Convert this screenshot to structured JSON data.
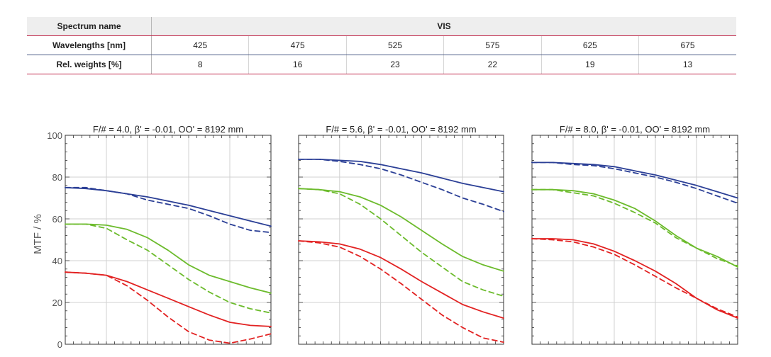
{
  "table": {
    "header_label": "Spectrum name",
    "spectrum": "VIS",
    "rows": [
      {
        "label": "Wavelengths [nm]",
        "values": [
          "425",
          "475",
          "525",
          "575",
          "625",
          "675"
        ]
      },
      {
        "label": "Rel. weights [%]",
        "values": [
          "8",
          "16",
          "23",
          "22",
          "19",
          "13"
        ]
      }
    ]
  },
  "chart_data": [
    {
      "type": "line",
      "title": "F/# = 4.0, β' = -0.01, OO' = 8192 mm",
      "ylabel": "MTF / %",
      "ylim": [
        0,
        100
      ],
      "yticks": [
        "0",
        "20",
        "40",
        "60",
        "80",
        "100"
      ],
      "grid": true,
      "series": [
        {
          "color": "#2b3f96",
          "dash": false,
          "x": [
            0,
            0.1,
            0.2,
            0.3,
            0.4,
            0.5,
            0.6,
            0.7,
            0.8,
            0.9,
            1
          ],
          "y": [
            75,
            74.5,
            73.5,
            72,
            70.5,
            68.5,
            66.5,
            64,
            61.5,
            59,
            56.5
          ]
        },
        {
          "color": "#2b3f96",
          "dash": true,
          "x": [
            0,
            0.1,
            0.2,
            0.3,
            0.4,
            0.5,
            0.6,
            0.7,
            0.8,
            0.9,
            1
          ],
          "y": [
            75,
            75,
            73.5,
            72,
            69,
            67,
            65,
            61.5,
            57.5,
            54.5,
            53.5
          ]
        },
        {
          "color": "#6cbb2c",
          "dash": false,
          "x": [
            0,
            0.1,
            0.2,
            0.3,
            0.4,
            0.5,
            0.6,
            0.7,
            0.8,
            0.9,
            1
          ],
          "y": [
            57.5,
            57.5,
            57,
            55,
            51,
            45,
            38,
            33,
            30,
            27,
            24.5
          ]
        },
        {
          "color": "#6cbb2c",
          "dash": true,
          "x": [
            0,
            0.1,
            0.2,
            0.3,
            0.4,
            0.5,
            0.6,
            0.7,
            0.8,
            0.9,
            1
          ],
          "y": [
            57.5,
            57.5,
            55.5,
            50,
            45,
            38,
            31,
            25,
            20,
            17,
            15
          ]
        },
        {
          "color": "#e22222",
          "dash": false,
          "x": [
            0,
            0.1,
            0.2,
            0.3,
            0.4,
            0.5,
            0.6,
            0.7,
            0.8,
            0.9,
            1
          ],
          "y": [
            34.5,
            34,
            33,
            30,
            26,
            22,
            18,
            14,
            10.5,
            9,
            8.5
          ]
        },
        {
          "color": "#e22222",
          "dash": true,
          "x": [
            0,
            0.1,
            0.2,
            0.3,
            0.4,
            0.5,
            0.6,
            0.7,
            0.8,
            0.9,
            1
          ],
          "y": [
            34.5,
            34,
            33,
            28,
            21,
            13,
            6,
            2,
            0.5,
            2.5,
            5
          ]
        }
      ]
    },
    {
      "type": "line",
      "title": "F/# = 5.6, β' = -0.01, OO' = 8192 mm",
      "ylim": [
        0,
        100
      ],
      "grid": true,
      "series": [
        {
          "color": "#2b3f96",
          "dash": false,
          "x": [
            0,
            0.1,
            0.2,
            0.3,
            0.4,
            0.5,
            0.6,
            0.7,
            0.8,
            0.9,
            1
          ],
          "y": [
            88.5,
            88.5,
            88,
            87.5,
            86,
            84,
            82,
            79.5,
            77,
            75,
            73
          ]
        },
        {
          "color": "#2b3f96",
          "dash": true,
          "x": [
            0,
            0.1,
            0.2,
            0.3,
            0.4,
            0.5,
            0.6,
            0.7,
            0.8,
            0.9,
            1
          ],
          "y": [
            88.5,
            88.5,
            87.5,
            86,
            84,
            81,
            77.5,
            74,
            70,
            67,
            63.5
          ]
        },
        {
          "color": "#6cbb2c",
          "dash": false,
          "x": [
            0,
            0.1,
            0.2,
            0.3,
            0.4,
            0.5,
            0.6,
            0.7,
            0.8,
            0.9,
            1
          ],
          "y": [
            74.5,
            74,
            73,
            70.5,
            66.5,
            61,
            54.5,
            48,
            42,
            38,
            35
          ]
        },
        {
          "color": "#6cbb2c",
          "dash": true,
          "x": [
            0,
            0.1,
            0.2,
            0.3,
            0.4,
            0.5,
            0.6,
            0.7,
            0.8,
            0.9,
            1
          ],
          "y": [
            74.5,
            74,
            72,
            67,
            60,
            52,
            44,
            37,
            30,
            26,
            23
          ]
        },
        {
          "color": "#e22222",
          "dash": false,
          "x": [
            0,
            0.1,
            0.2,
            0.3,
            0.4,
            0.5,
            0.6,
            0.7,
            0.8,
            0.9,
            1
          ],
          "y": [
            49.5,
            49,
            48,
            45.5,
            41.5,
            36,
            30,
            24.5,
            19,
            15.5,
            12.5
          ]
        },
        {
          "color": "#e22222",
          "dash": true,
          "x": [
            0,
            0.1,
            0.2,
            0.3,
            0.4,
            0.5,
            0.6,
            0.7,
            0.8,
            0.9,
            1
          ],
          "y": [
            49.5,
            48.5,
            46.5,
            42,
            36,
            29,
            21.5,
            14,
            8,
            3,
            1
          ]
        }
      ]
    },
    {
      "type": "line",
      "title": "F/# = 8.0, β' = -0.01, OO' = 8192 mm",
      "ylim": [
        0,
        100
      ],
      "grid": true,
      "series": [
        {
          "color": "#2b3f96",
          "dash": false,
          "x": [
            0,
            0.1,
            0.2,
            0.3,
            0.4,
            0.5,
            0.6,
            0.7,
            0.8,
            0.9,
            1
          ],
          "y": [
            87,
            87,
            86.5,
            86,
            85,
            83,
            81,
            78.5,
            76,
            73,
            70
          ]
        },
        {
          "color": "#2b3f96",
          "dash": true,
          "x": [
            0,
            0.1,
            0.2,
            0.3,
            0.4,
            0.5,
            0.6,
            0.7,
            0.8,
            0.9,
            1
          ],
          "y": [
            87,
            87,
            86,
            85.5,
            84,
            82,
            80,
            77.5,
            74.5,
            71,
            67.5
          ]
        },
        {
          "color": "#6cbb2c",
          "dash": false,
          "x": [
            0,
            0.1,
            0.2,
            0.3,
            0.4,
            0.5,
            0.6,
            0.7,
            0.8,
            0.9,
            1
          ],
          "y": [
            74,
            74,
            73.5,
            72,
            69,
            65,
            59,
            52,
            46,
            42,
            37
          ]
        },
        {
          "color": "#6cbb2c",
          "dash": true,
          "x": [
            0,
            0.1,
            0.2,
            0.3,
            0.4,
            0.5,
            0.6,
            0.7,
            0.8,
            0.9,
            1
          ],
          "y": [
            74,
            74,
            72.5,
            71,
            67.5,
            63,
            58,
            51,
            46,
            41,
            37.5
          ]
        },
        {
          "color": "#e22222",
          "dash": false,
          "x": [
            0,
            0.1,
            0.2,
            0.3,
            0.4,
            0.5,
            0.6,
            0.7,
            0.8,
            0.9,
            1
          ],
          "y": [
            50.5,
            50.5,
            50,
            48,
            44.5,
            40,
            35,
            29,
            22,
            16.5,
            12.5
          ]
        },
        {
          "color": "#e22222",
          "dash": true,
          "x": [
            0,
            0.1,
            0.2,
            0.3,
            0.4,
            0.5,
            0.6,
            0.7,
            0.8,
            0.9,
            1
          ],
          "y": [
            50.5,
            50,
            49,
            46.5,
            43,
            38,
            32.5,
            27,
            22,
            17,
            13
          ]
        }
      ]
    }
  ]
}
